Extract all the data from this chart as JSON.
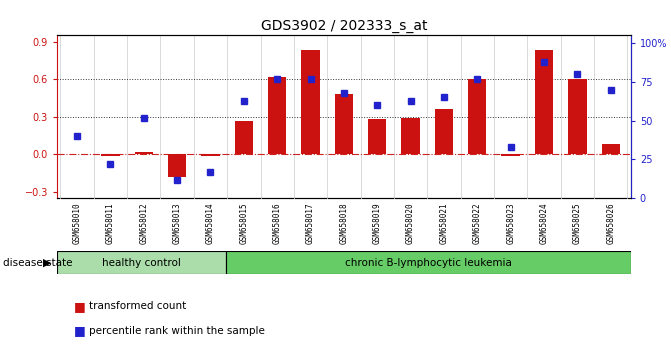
{
  "title": "GDS3902 / 202333_s_at",
  "samples": [
    "GSM658010",
    "GSM658011",
    "GSM658012",
    "GSM658013",
    "GSM658014",
    "GSM658015",
    "GSM658016",
    "GSM658017",
    "GSM658018",
    "GSM658019",
    "GSM658020",
    "GSM658021",
    "GSM658022",
    "GSM658023",
    "GSM658024",
    "GSM658025",
    "GSM658026"
  ],
  "transformed_count": [
    0.0,
    -0.01,
    0.02,
    -0.18,
    -0.01,
    0.27,
    0.62,
    0.83,
    0.48,
    0.28,
    0.29,
    0.36,
    0.6,
    -0.01,
    0.83,
    0.6,
    0.08
  ],
  "percentile_rank": [
    40,
    22,
    52,
    12,
    17,
    63,
    77,
    77,
    68,
    60,
    63,
    65,
    77,
    33,
    88,
    80,
    70
  ],
  "healthy_control_count": 5,
  "bar_color": "#cc1111",
  "dot_color": "#2222cc",
  "healthy_color": "#aaddaa",
  "leukemia_color": "#66cc66",
  "ylim_left": [
    -0.35,
    0.95
  ],
  "ylim_right": [
    0,
    105
  ],
  "yticks_left": [
    -0.3,
    0.0,
    0.3,
    0.6,
    0.9
  ],
  "yticks_right": [
    0,
    25,
    50,
    75,
    100
  ],
  "zero_line_color": "#cc2222",
  "dotted_line_color": "#333333",
  "legend_tc": "transformed count",
  "legend_pr": "percentile rank within the sample",
  "group_label": "disease state",
  "label_healthy": "healthy control",
  "label_leukemia": "chronic B-lymphocytic leukemia",
  "title_fontsize": 10,
  "tick_fontsize": 7,
  "label_fontsize": 8
}
